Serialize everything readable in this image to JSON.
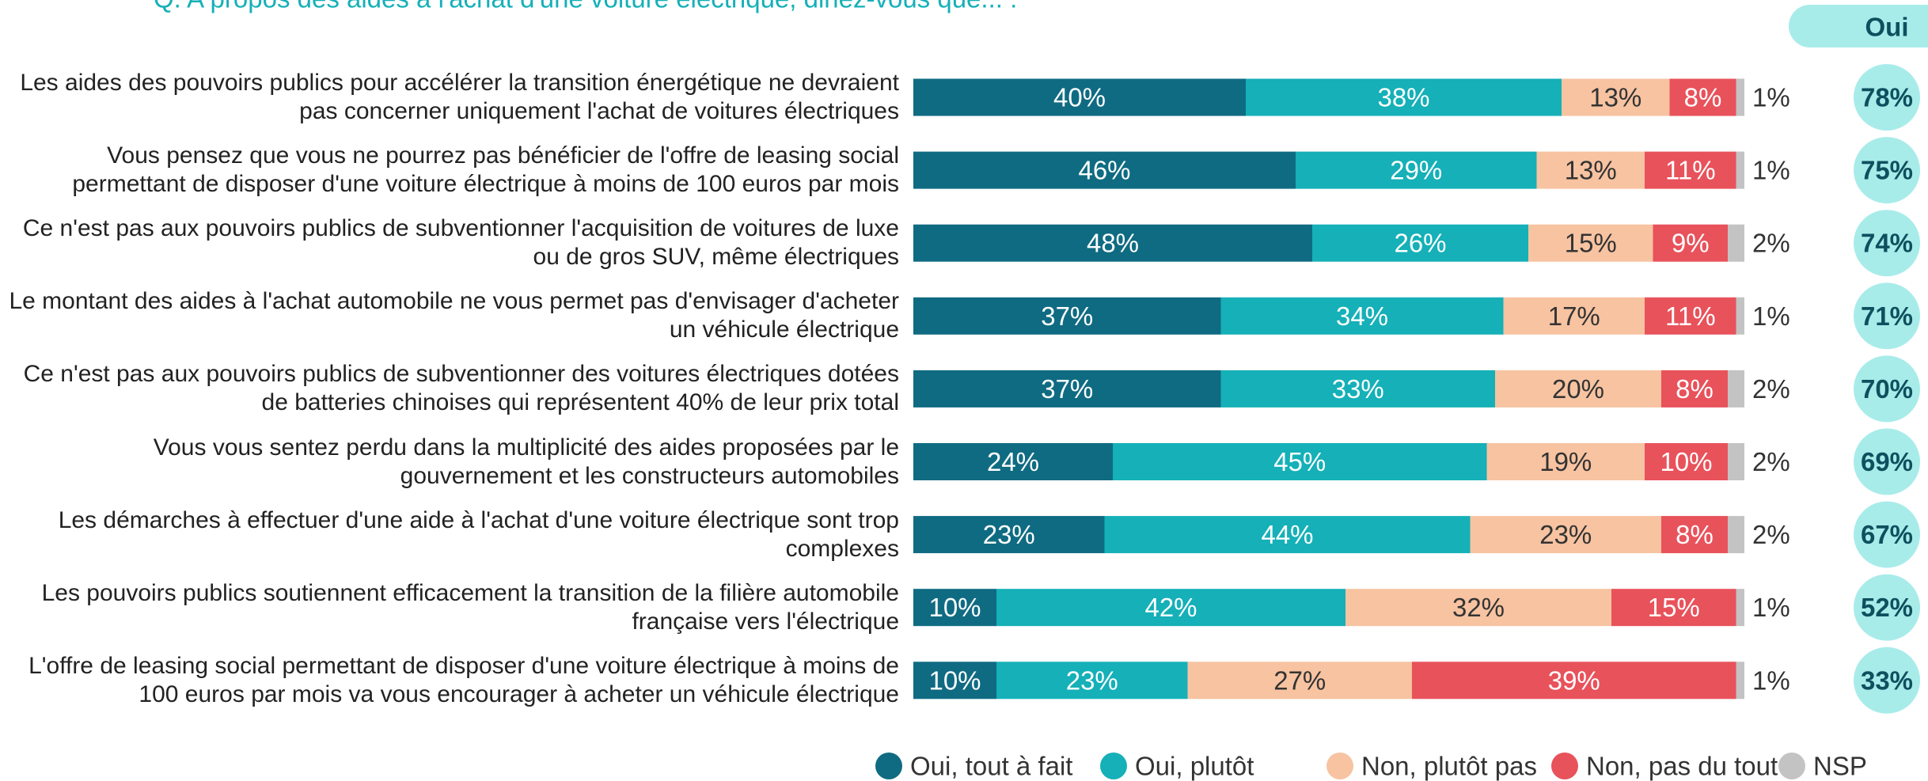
{
  "chart_data": {
    "type": "stacked-bar-horizontal",
    "title": "Q. A propos des aides à l'achat d'une voiture électrique, diriez-vous que... :",
    "categories": [
      "Les aides des pouvoirs publics pour accélérer la transition énergétique ne devraient pas concerner uniquement l'achat de voitures électriques",
      "Vous pensez que vous ne pourrez pas bénéficier de l'offre de leasing social permettant de disposer d'une voiture électrique à moins de 100 euros par mois",
      "Ce n'est pas aux pouvoirs publics de subventionner l'acquisition de voitures de luxe ou de gros SUV, même électriques",
      "Le montant des aides à l'achat automobile ne vous permet pas d'envisager d'acheter un véhicule électrique",
      "Ce n'est pas aux pouvoirs publics de subventionner des voitures électriques dotées de batteries chinoises qui représentent 40% de leur prix total",
      "Vous vous sentez perdu dans la multiplicité des aides proposées par le gouvernement et les constructeurs automobiles",
      "Les démarches à effectuer d'une aide à l'achat d'une voiture électrique sont trop complexes",
      "Les pouvoirs publics soutiennent efficacement la transition de la filière automobile française vers l'électrique",
      "L'offre de leasing social permettant de disposer d'une voiture électrique à moins de 100 euros par mois va vous encourager à acheter un véhicule électrique"
    ],
    "series": [
      {
        "name": "Oui, tout à fait",
        "color": "#0f6b82",
        "values": [
          40,
          46,
          48,
          37,
          37,
          24,
          23,
          10,
          10
        ],
        "value_labels": [
          "40%",
          "46%",
          "48%",
          "37%",
          "37%",
          "24%",
          "23%",
          "10%",
          "10%"
        ]
      },
      {
        "name": "Oui, plutôt",
        "color": "#15b0b8",
        "values": [
          38,
          29,
          26,
          34,
          33,
          45,
          44,
          42,
          23
        ],
        "value_labels": [
          "38%",
          "29%",
          "26%",
          "34%",
          "33%",
          "45%",
          "44%",
          "42%",
          "23%"
        ]
      },
      {
        "name": "Non, plutôt pas",
        "color": "#f7c3a1",
        "values": [
          13,
          13,
          15,
          17,
          20,
          19,
          23,
          32,
          27
        ],
        "value_labels": [
          "13%",
          "13%",
          "15%",
          "17%",
          "20%",
          "19%",
          "23%",
          "32%",
          "27%"
        ]
      },
      {
        "name": "Non, pas du tout",
        "color": "#e8525b",
        "values": [
          8,
          11,
          9,
          11,
          8,
          10,
          8,
          15,
          39
        ],
        "value_labels": [
          "8%",
          "11%",
          "9%",
          "11%",
          "8%",
          "10%",
          "8%",
          "15%",
          "39%"
        ]
      },
      {
        "name": "NSP",
        "color": "#c3c3c3",
        "values": [
          1,
          1,
          2,
          1,
          2,
          2,
          2,
          1,
          1
        ],
        "value_labels": [
          "1%",
          "1%",
          "2%",
          "1%",
          "2%",
          "2%",
          "2%",
          "1%",
          "1%"
        ]
      }
    ],
    "oui": {
      "name": "Oui",
      "values": [
        78,
        75,
        74,
        71,
        70,
        69,
        67,
        52,
        33
      ],
      "value_labels": [
        "78%",
        "75%",
        "74%",
        "71%",
        "70%",
        "69%",
        "67%",
        "52%",
        "33%"
      ]
    },
    "xlim": [
      0,
      100
    ]
  }
}
